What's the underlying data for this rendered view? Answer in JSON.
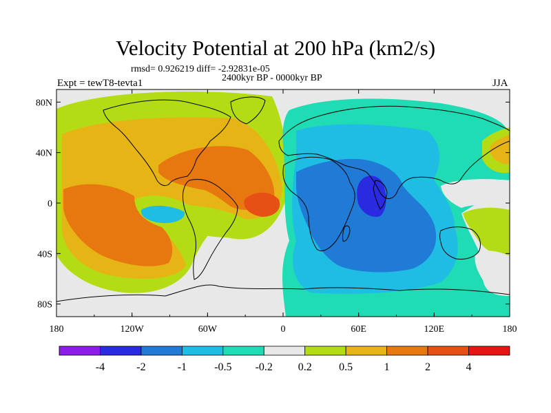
{
  "title": "Velocity Potential at 200 hPa (km2/s)",
  "stats": "rmsd= 0.926219 diff= -2.92831e-05",
  "period": "2400kyr BP - 0000kyr BP",
  "experiment": "Expt = tewT8-tevta1",
  "season": "JJA",
  "axes": {
    "x_ticks": [
      "180",
      "120W",
      "60W",
      "0",
      "60E",
      "120E",
      "180"
    ],
    "y_ticks": [
      "80N",
      "40N",
      "0",
      "40S",
      "80S"
    ]
  },
  "colorbar": {
    "labels": [
      "-4",
      "-2",
      "-1",
      "-0.5",
      "-0.2",
      "0.2",
      "0.5",
      "1",
      "2",
      "4"
    ],
    "colors": [
      "#8c1de8",
      "#2a2ae0",
      "#1f7bd6",
      "#1fbde4",
      "#1fdcb4",
      "#e8e8e8",
      "#b4dc14",
      "#e6b414",
      "#e6780f",
      "#e65014",
      "#e61414"
    ]
  },
  "palette": {
    "neutral": "#e8e8e8",
    "pos1": "#b4dc14",
    "pos2": "#e6b414",
    "pos3": "#e6780f",
    "pos4": "#e65014",
    "neg1": "#1fdcb4",
    "neg2": "#1fbde4",
    "neg3": "#1f7bd6",
    "neg4": "#2a2ae0",
    "coast": "#000000"
  }
}
